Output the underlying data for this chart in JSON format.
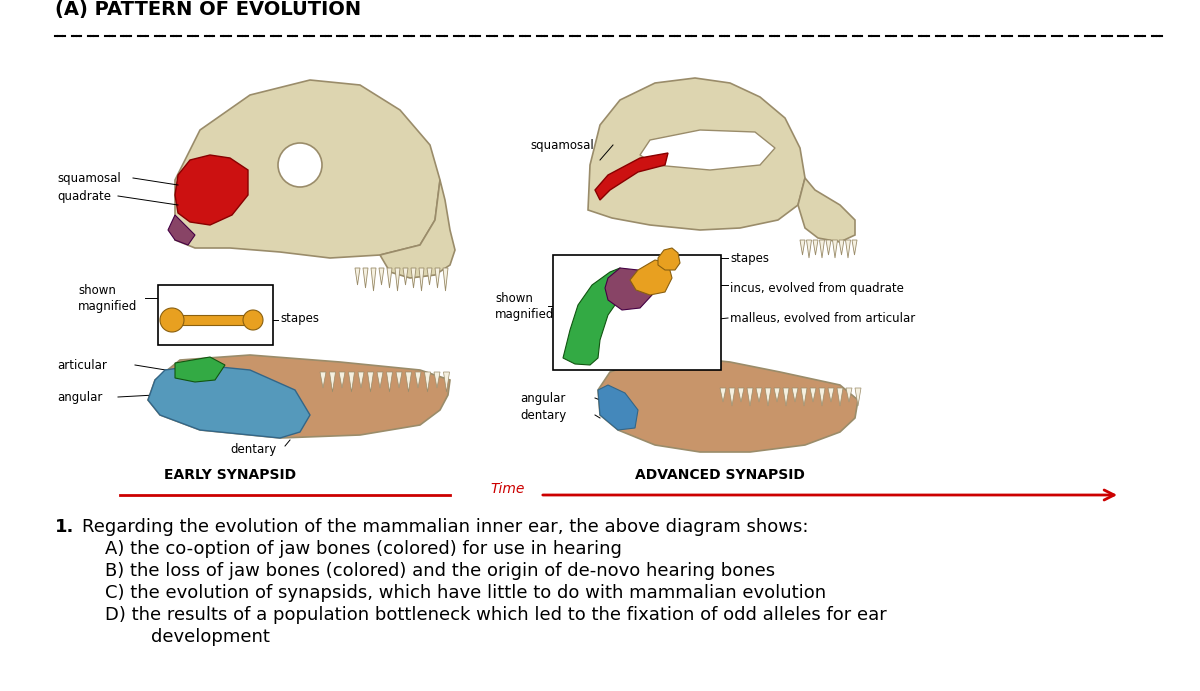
{
  "title": "(A) PATTERN OF EVOLUTION",
  "title_fontsize": 14,
  "background_color": "#ffffff",
  "time_label": "Time",
  "time_arrow_color": "#cc0000",
  "early_label": "EARLY SYNAPSID",
  "advanced_label": "ADVANCED SYNAPSID",
  "question_number": "1.",
  "question_text": "Regarding the evolution of the mammalian inner ear, the above diagram shows:",
  "answer_A": "A) the co-option of jaw bones (colored) for use in hearing",
  "answer_B": "B) the loss of jaw bones (colored) and the origin of de-novo hearing bones",
  "answer_C": "C) the evolution of synapsids, which have little to do with mammalian evolution",
  "answer_D": "D) the results of a population bottleneck which led to the fixation of odd alleles for ear",
  "answer_D2": "        development",
  "text_fontsize": 13,
  "label_fontsize": 8.5,
  "skull_color": "#ddd5b0",
  "skull_edge": "#9a8c6a",
  "squamosal_color": "#cc1111",
  "orange_color": "#e8a020",
  "blue_color": "#5599bb",
  "green_color": "#33aa44",
  "dentary_color": "#c8956a",
  "purple_color": "#884466",
  "small_blue_color": "#4488bb"
}
